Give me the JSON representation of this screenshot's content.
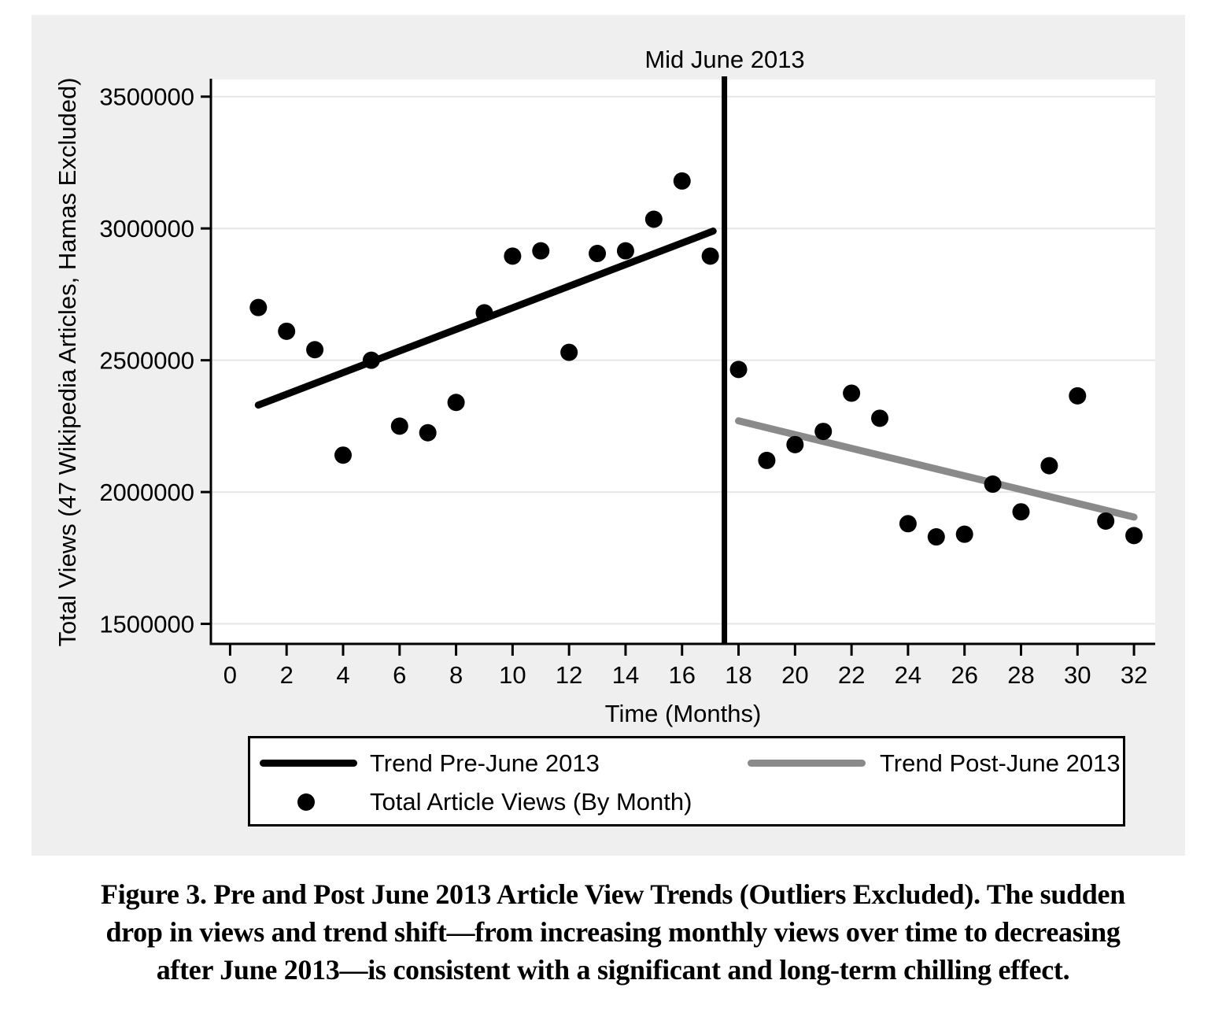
{
  "figure_title": "Figure 3",
  "caption_lines": [
    "Figure 3. Pre and Post June 2013 Article View Trends (Outliers Excluded). The sudden",
    "drop in views and trend shift—from increasing monthly views over time to decreasing",
    "after June 2013—is consistent with a significant and long-term chilling effect."
  ],
  "colors": {
    "black": "#000000",
    "trend_post_gray": "#8a8a8a",
    "figure_bg": "#efefef",
    "plot_bg": "#ffffff",
    "gridline": "#e6e6e6"
  },
  "chart_data": {
    "type": "scatter",
    "xlabel": "Time (Months)",
    "ylabel": "Total Views (47 Wikipedia Articles, Hamas Excluded)",
    "xlim": [
      -0.68,
      32.75
    ],
    "ylim": [
      1424000,
      3565000
    ],
    "xticks": [
      0,
      2,
      4,
      6,
      8,
      10,
      12,
      14,
      16,
      18,
      20,
      22,
      24,
      26,
      28,
      30,
      32
    ],
    "yticks": [
      1500000,
      2000000,
      2500000,
      3000000,
      3500000
    ],
    "grid": "horizontal",
    "legend_position": "bottom",
    "points": {
      "name": "Total Article Views (By Month)",
      "color": "#000000",
      "x": [
        1,
        2,
        3,
        4,
        5,
        6,
        7,
        8,
        9,
        10,
        11,
        12,
        13,
        14,
        15,
        16,
        17,
        18,
        19,
        20,
        21,
        22,
        23,
        24,
        25,
        26,
        27,
        28,
        29,
        30,
        31,
        32
      ],
      "y": [
        2700000,
        2610000,
        2540000,
        2140000,
        2500000,
        2250000,
        2225000,
        2340000,
        2680000,
        2895000,
        2915000,
        2530000,
        2905000,
        2915000,
        3035000,
        3180000,
        2895000,
        2465000,
        2120000,
        2180000,
        2230000,
        2375000,
        2280000,
        1880000,
        1830000,
        1840000,
        2030000,
        1925000,
        2100000,
        2365000,
        1890000,
        1835000
      ]
    },
    "trend_pre": {
      "name": "Trend Pre-June 2013",
      "color": "#000000",
      "x": [
        1,
        17.1
      ],
      "y": [
        2330000,
        2990000
      ]
    },
    "trend_post": {
      "name": "Trend Post-June 2013",
      "color": "#8a8a8a",
      "x": [
        18,
        32
      ],
      "y": [
        2270000,
        1905000
      ]
    },
    "vline": {
      "x": 17.5,
      "label": "Mid June 2013",
      "color": "#000000"
    }
  }
}
